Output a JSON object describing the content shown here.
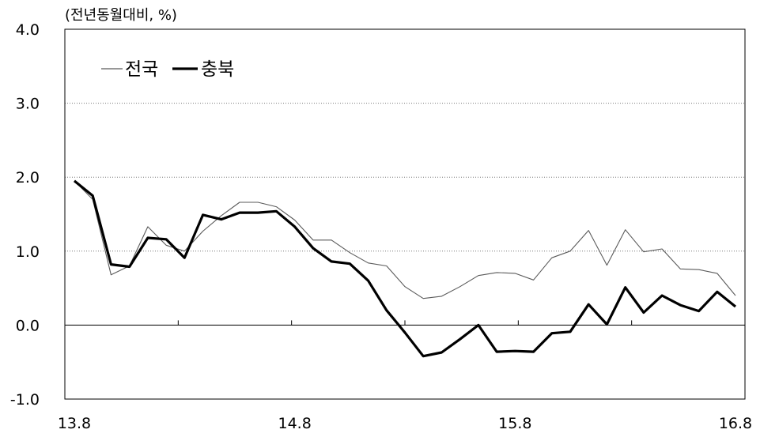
{
  "chart_data": {
    "type": "line",
    "unit_label": "(전년동월대비, %)",
    "ylim": [
      -1.0,
      4.0
    ],
    "y_ticks": [
      4.0,
      3.0,
      2.0,
      1.0,
      0.0,
      -1.0
    ],
    "y_tick_labels": [
      "4.0",
      "3.0",
      "2.0",
      "1.0",
      "0.0",
      "-1.0"
    ],
    "x_tick_labels": [
      {
        "index": 0,
        "label": "13.8"
      },
      {
        "index": 12,
        "label": "14.8"
      },
      {
        "index": 24,
        "label": "15.8"
      },
      {
        "index": 36,
        "label": "16.8"
      }
    ],
    "grid": "horizontal dotted at 1.0, 2.0, 3.0",
    "legend_placement": "top-left",
    "series": [
      {
        "name": "전국",
        "style": "thin",
        "color": "#5a5a5a",
        "values": [
          1.95,
          1.7,
          0.68,
          0.8,
          1.33,
          1.08,
          1.0,
          1.27,
          1.48,
          1.66,
          1.66,
          1.6,
          1.42,
          1.15,
          1.15,
          0.98,
          0.84,
          0.8,
          0.52,
          0.36,
          0.39,
          0.52,
          0.67,
          0.71,
          0.7,
          0.61,
          0.91,
          1.0,
          1.28,
          0.81,
          1.29,
          0.99,
          1.03,
          0.76,
          0.75,
          0.7,
          0.4
        ]
      },
      {
        "name": "충북",
        "style": "thick",
        "color": "#000000",
        "values": [
          1.95,
          1.75,
          0.82,
          0.79,
          1.18,
          1.16,
          0.91,
          1.49,
          1.43,
          1.52,
          1.52,
          1.54,
          1.33,
          1.04,
          0.86,
          0.83,
          0.6,
          0.2,
          -0.1,
          -0.42,
          -0.37,
          -0.19,
          0.0,
          -0.36,
          -0.35,
          -0.36,
          -0.11,
          -0.09,
          0.28,
          0.01,
          0.51,
          0.17,
          0.4,
          0.27,
          0.19,
          0.45,
          0.25
        ]
      }
    ]
  }
}
